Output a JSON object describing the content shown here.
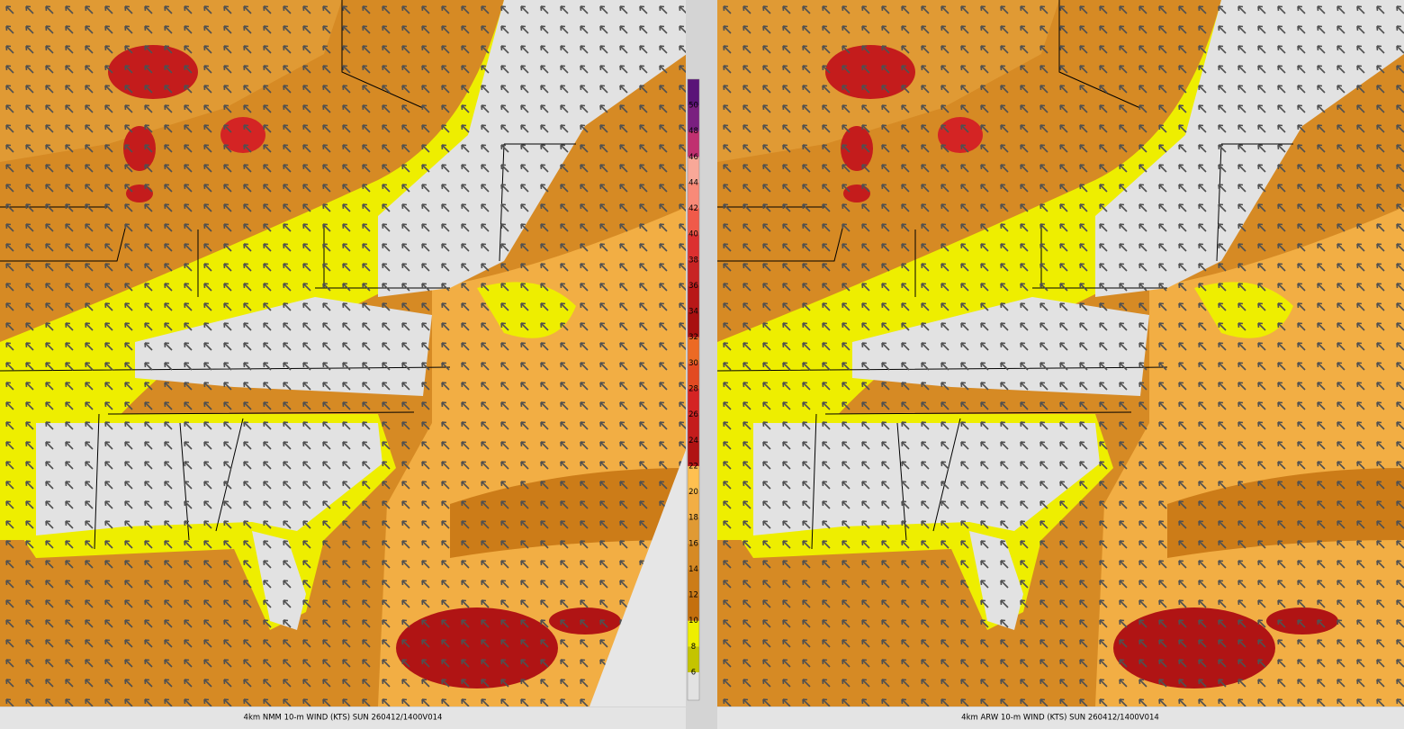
{
  "panels": [
    {
      "caption": "4km NMM 10-m WIND (KTS) SUN 260412/1400V014"
    },
    {
      "caption": "4km ARW 10-m WIND (KTS) SUN 260412/1400V014"
    }
  ],
  "colorbar": {
    "levels": [
      6,
      8,
      10,
      12,
      14,
      16,
      18,
      20,
      22,
      24,
      26,
      28,
      30,
      32,
      34,
      36,
      38,
      40,
      42,
      44,
      46,
      48,
      50
    ],
    "colors": [
      "#e2e2e2",
      "#c4c400",
      "#eeee00",
      "#c4700e",
      "#cc7c18",
      "#d68a24",
      "#e09a34",
      "#f2ae44",
      "#ffc050",
      "#b01414",
      "#c41c1c",
      "#d42424",
      "#e24a22",
      "#ec6a24",
      "#a81010",
      "#b81818",
      "#c82424",
      "#dc3030",
      "#f05a4a",
      "#f88a78",
      "#f8a898",
      "#c03070",
      "#7a2080",
      "#5a1478"
    ]
  }
}
